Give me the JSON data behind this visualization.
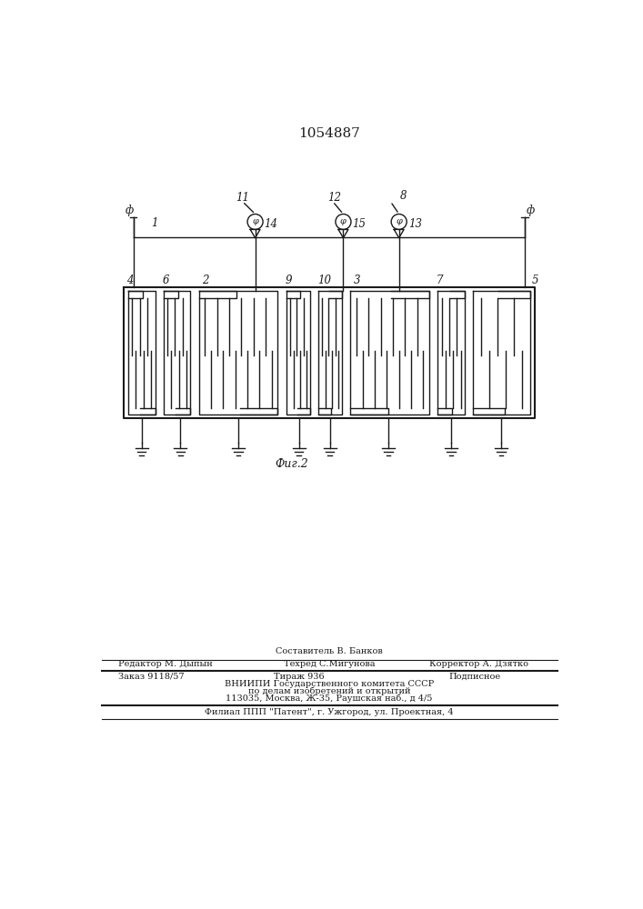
{
  "title": "1054887",
  "fig_label": "Фиг.2",
  "bg_color": "#ffffff",
  "line_color": "#1a1a1a",
  "title_fontsize": 11,
  "label_fontsize": 8.5,
  "footer_lines": [
    "Составитель В. Банков",
    "Редактор М. Дыпын",
    "Техред С.Мигунова",
    "Корректор А. Дзятко",
    "Заказ 9118/57",
    "Тираж 936",
    "Подписное",
    "ВНИИПИ Государственного комитета СССР",
    "по делам изобретений и открытий",
    "113035, Москва, Ж-35, Раушская наб., д 4/5",
    "Филиал ППП \"Патент\", г. Ужгород, ул. Проектная, 4"
  ]
}
